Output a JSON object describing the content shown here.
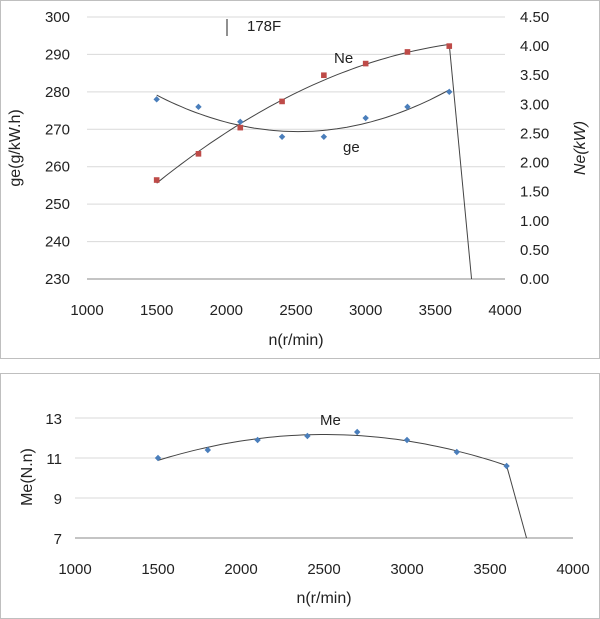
{
  "chart_data": [
    {
      "type": "scatter",
      "title": "178F",
      "xlabel": "n(r/min)",
      "ylabel": "ge(g/kW.h)",
      "y2label": "Ne(kW)",
      "xlim": [
        1000,
        4000
      ],
      "ylim": [
        230,
        300
      ],
      "y2lim": [
        0,
        4.5
      ],
      "x_ticks": [
        "1000",
        "1500",
        "2000",
        "2500",
        "3000",
        "3500",
        "4000"
      ],
      "y_ticks": [
        "230",
        "240",
        "250",
        "260",
        "270",
        "280",
        "290",
        "300"
      ],
      "y2_ticks": [
        "0.00",
        "0.50",
        "1.00",
        "1.50",
        "2.00",
        "2.50",
        "3.00",
        "3.50",
        "4.00",
        "4.50"
      ],
      "grid": "horizontal",
      "series": [
        {
          "name": "ge",
          "axis": "left",
          "marker": "diamond",
          "color": "#4a7ebb",
          "x": [
            1500,
            1800,
            2100,
            2400,
            2700,
            3000,
            3300,
            3600
          ],
          "values": [
            278,
            276,
            272,
            268,
            268,
            273,
            276,
            280
          ]
        },
        {
          "name": "Ne",
          "axis": "right",
          "marker": "square",
          "color": "#be4b48",
          "x": [
            1500,
            1800,
            2100,
            2400,
            2700,
            3000,
            3300,
            3600
          ],
          "values": [
            1.7,
            2.15,
            2.6,
            3.05,
            3.5,
            3.7,
            3.9,
            4.0
          ]
        }
      ]
    },
    {
      "type": "scatter",
      "xlabel": "n(r/min)",
      "ylabel": "Me(N.n)",
      "xlim": [
        1000,
        4000
      ],
      "ylim": [
        7,
        13
      ],
      "x_ticks": [
        "1000",
        "1500",
        "2000",
        "2500",
        "3000",
        "3500",
        "4000"
      ],
      "y_ticks": [
        "7",
        "9",
        "11",
        "13"
      ],
      "grid": "horizontal",
      "series": [
        {
          "name": "Me",
          "marker": "diamond",
          "color": "#4a7ebb",
          "x": [
            1500,
            1800,
            2100,
            2400,
            2700,
            3000,
            3300,
            3600
          ],
          "values": [
            11.0,
            11.4,
            11.9,
            12.1,
            12.3,
            11.9,
            11.3,
            10.6
          ]
        }
      ]
    }
  ]
}
